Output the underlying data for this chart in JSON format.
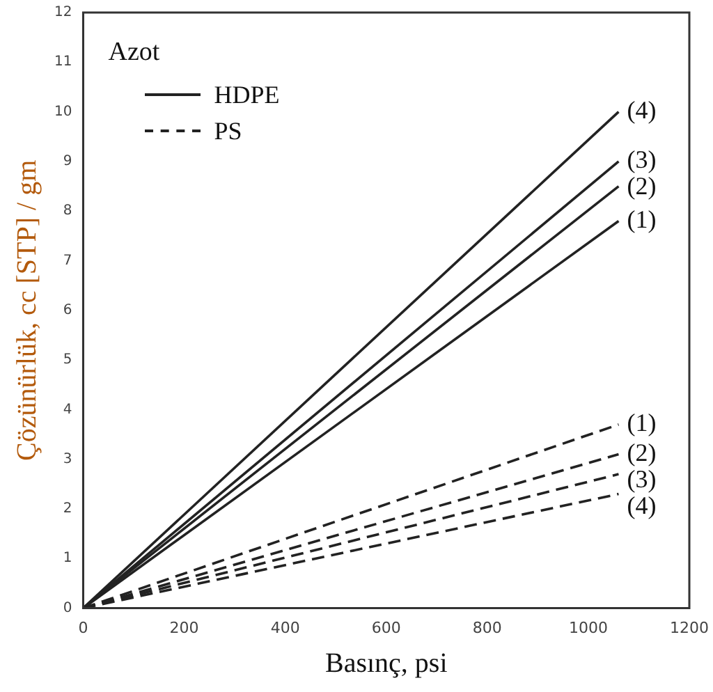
{
  "chart_data": {
    "type": "line",
    "xlabel": "Basınç, psi",
    "ylabel": "Çözünürlük, cc [STP] / gm",
    "legend_title": "Azot",
    "annotations": [
      "HDPE",
      "PS"
    ],
    "grid": false,
    "marker": "none",
    "xlim": [
      0,
      1200
    ],
    "xticks": [
      0,
      200,
      400,
      600,
      800,
      1000,
      1200
    ],
    "ylim": [
      0,
      12
    ],
    "yticks": [
      0,
      1,
      2,
      3,
      4,
      5,
      6,
      7,
      8,
      9,
      10,
      11,
      12
    ],
    "x": [
      0,
      1060
    ],
    "series": [
      {
        "name": "(4)",
        "color": "#222222",
        "line_style": "solid",
        "values": [
          0,
          10.0
        ]
      },
      {
        "name": "(3)",
        "color": "#222222",
        "line_style": "solid",
        "values": [
          0,
          9.0
        ]
      },
      {
        "name": "(2)",
        "color": "#222222",
        "line_style": "solid",
        "values": [
          0,
          8.5
        ]
      },
      {
        "name": "(1)",
        "color": "#222222",
        "line_style": "solid",
        "values": [
          0,
          7.8
        ]
      },
      {
        "name": "(1)",
        "color": "#222222",
        "line_style": "dashed",
        "values": [
          0,
          3.7
        ]
      },
      {
        "name": "(2)",
        "color": "#222222",
        "line_style": "dashed",
        "values": [
          0,
          3.1
        ]
      },
      {
        "name": "(3)",
        "color": "#222222",
        "line_style": "dashed",
        "values": [
          0,
          2.7
        ]
      },
      {
        "name": "(4)",
        "color": "#222222",
        "line_style": "dashed",
        "values": [
          0,
          2.3
        ]
      }
    ]
  }
}
